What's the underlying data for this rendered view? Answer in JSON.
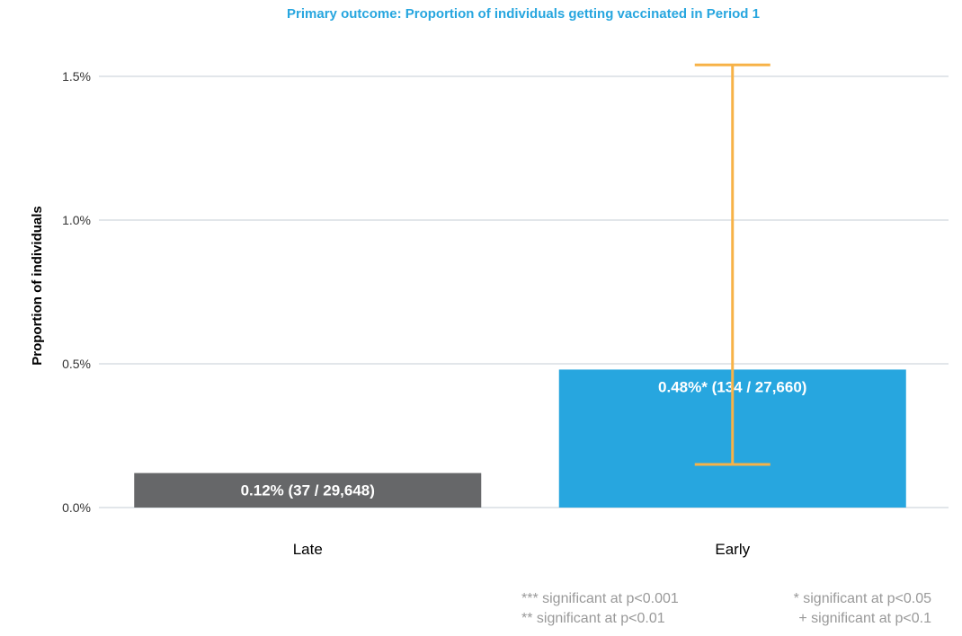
{
  "chart_data": {
    "type": "bar",
    "title": "Primary outcome: Proportion of individuals getting vaccinated in Period 1",
    "xlabel": "",
    "ylabel": "Proportion of individuals",
    "categories": [
      "Late",
      "Early"
    ],
    "values": [
      0.12,
      0.48
    ],
    "bar_labels": [
      "0.12%   (37 / 29,648)",
      "0.48%*   (134 / 27,660)"
    ],
    "error_bars": [
      null,
      {
        "low": 0.15,
        "high": 1.54
      }
    ],
    "ylim": [
      0,
      1.6
    ],
    "y_ticks": [
      0,
      0.5,
      1.0,
      1.5
    ],
    "y_tick_labels": [
      "0.0%",
      "0.5%",
      "1.0%",
      "1.5%"
    ],
    "grid": true,
    "colors": {
      "Late": "#666769",
      "Early": "#27a6df",
      "error_bar": "#f7b247",
      "title": "#27a6df",
      "grid": "#d9dee3"
    }
  },
  "notes": {
    "left": [
      "*** significant at p<0.001",
      "** significant at p<0.01"
    ],
    "right": [
      "* significant at p<0.05",
      "+ significant at p<0.1"
    ]
  }
}
